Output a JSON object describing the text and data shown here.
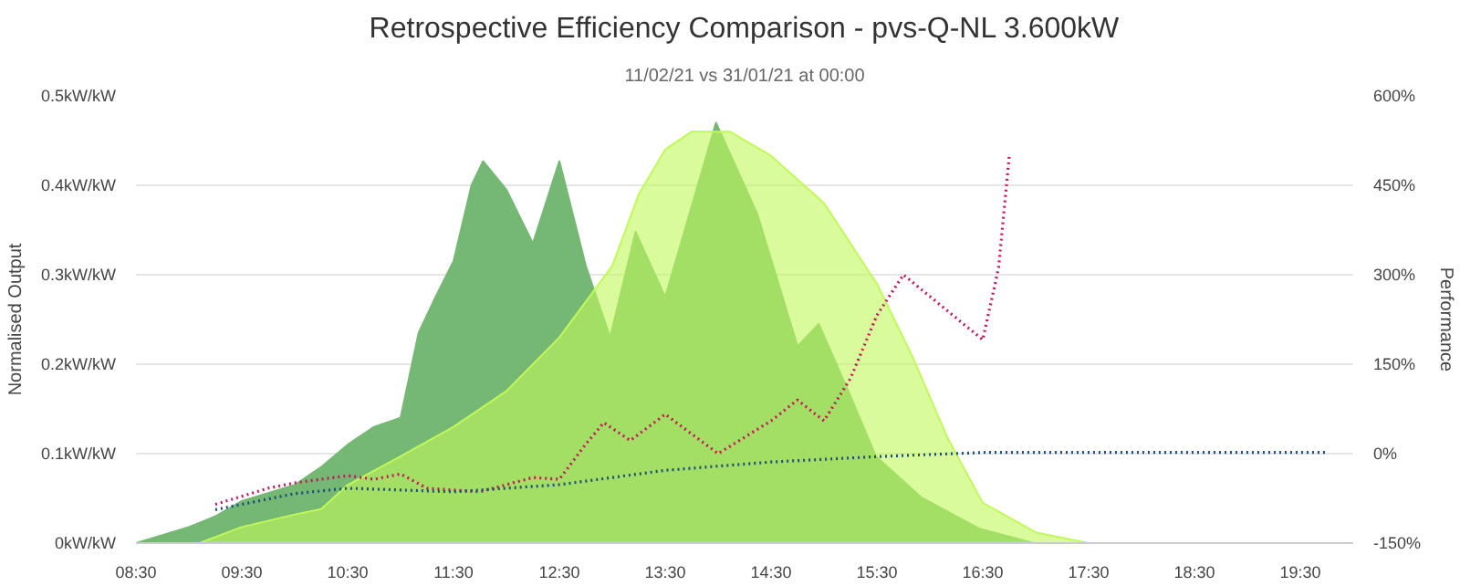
{
  "chart_data": {
    "type": "area",
    "title": "Retrospective Efficiency Comparison - pvs-Q-NL 3.600kW",
    "subtitle": "11/02/21 vs 31/01/21 at 00:00",
    "ylabel": "Normalised Output",
    "y2label": "Performance",
    "xlim": [
      8.5,
      20.0
    ],
    "xticks": [
      {
        "value": 8.5,
        "label": "08:30"
      },
      {
        "value": 9.5,
        "label": "09:30"
      },
      {
        "value": 10.5,
        "label": "10:30"
      },
      {
        "value": 11.5,
        "label": "11:30"
      },
      {
        "value": 12.5,
        "label": "12:30"
      },
      {
        "value": 13.5,
        "label": "13:30"
      },
      {
        "value": 14.5,
        "label": "14:30"
      },
      {
        "value": 15.5,
        "label": "15:30"
      },
      {
        "value": 16.5,
        "label": "16:30"
      },
      {
        "value": 17.5,
        "label": "17:30"
      },
      {
        "value": 18.5,
        "label": "18:30"
      },
      {
        "value": 19.5,
        "label": "19:30"
      }
    ],
    "ylim": [
      0,
      0.5
    ],
    "yticks": [
      {
        "value": 0,
        "label": "0kW/kW"
      },
      {
        "value": 0.1,
        "label": "0.1kW/kW"
      },
      {
        "value": 0.2,
        "label": "0.2kW/kW"
      },
      {
        "value": 0.3,
        "label": "0.3kW/kW"
      },
      {
        "value": 0.4,
        "label": "0.4kW/kW"
      },
      {
        "value": 0.5,
        "label": "0.5kW/kW"
      }
    ],
    "y2lim": [
      -150,
      600
    ],
    "y2ticks": [
      {
        "value": -150,
        "label": "-150%"
      },
      {
        "value": 0,
        "label": "0%"
      },
      {
        "value": 150,
        "label": "150%"
      },
      {
        "value": 300,
        "label": "300%"
      },
      {
        "value": 450,
        "label": "450%"
      },
      {
        "value": 600,
        "label": "600%"
      }
    ],
    "grid": "y",
    "series": [
      {
        "color": "#74b874",
        "x": [
          8.5,
          9.0,
          9.25,
          9.5,
          10.0,
          10.25,
          10.5,
          10.75,
          11.0,
          11.17,
          11.33,
          11.5,
          11.67,
          11.78,
          12.0,
          12.25,
          12.5,
          12.75,
          12.98,
          13.22,
          13.5,
          13.98,
          14.37,
          14.75,
          14.95,
          15.23,
          15.49,
          15.92,
          16.47,
          16.98,
          19.8
        ],
        "values": [
          0.0,
          0.018,
          0.03,
          0.047,
          0.065,
          0.085,
          0.11,
          0.13,
          0.14,
          0.235,
          0.275,
          0.315,
          0.4,
          0.427,
          0.395,
          0.335,
          0.427,
          0.31,
          0.23,
          0.348,
          0.275,
          0.47,
          0.368,
          0.22,
          0.245,
          0.17,
          0.097,
          0.051,
          0.016,
          0.0,
          0.0
        ]
      },
      {
        "color": "#c1f85a",
        "x": [
          9.1,
          9.5,
          10.0,
          10.25,
          10.5,
          11.0,
          11.5,
          12.0,
          12.5,
          13.0,
          13.25,
          13.5,
          13.75,
          14.11,
          14.5,
          15.0,
          15.5,
          15.83,
          16.17,
          16.5,
          17.0,
          17.5
        ],
        "values": [
          0.0,
          0.018,
          0.032,
          0.038,
          0.065,
          0.097,
          0.13,
          0.17,
          0.23,
          0.31,
          0.39,
          0.44,
          0.46,
          0.46,
          0.433,
          0.38,
          0.29,
          0.21,
          0.117,
          0.045,
          0.012,
          0.0
        ]
      },
      {
        "type": "line",
        "axis": "y2",
        "color": "#c2185b",
        "line_style": "dotted",
        "x": [
          9.25,
          9.75,
          10.0,
          10.5,
          10.75,
          11.0,
          11.25,
          11.75,
          12.25,
          12.5,
          12.75,
          12.92,
          13.17,
          13.5,
          14.0,
          14.5,
          14.75,
          15.0,
          15.25,
          15.5,
          15.75,
          16.5,
          16.65,
          16.75
        ],
        "values": [
          -85,
          -58,
          -49,
          -37,
          -43,
          -34,
          -58,
          -64,
          -40,
          -43,
          16,
          52,
          22,
          66,
          0,
          55,
          90,
          55,
          126,
          232,
          300,
          191,
          312,
          499
        ]
      },
      {
        "type": "line",
        "axis": "y2",
        "color": "#1f4e79",
        "line_style": "dotted",
        "x": [
          9.25,
          10.0,
          10.5,
          11.5,
          12.5,
          13.5,
          14.5,
          15.5,
          16.5,
          19.75
        ],
        "values": [
          -94,
          -67,
          -58,
          -64,
          -52,
          -28,
          -14,
          -5,
          2,
          2
        ]
      }
    ]
  }
}
